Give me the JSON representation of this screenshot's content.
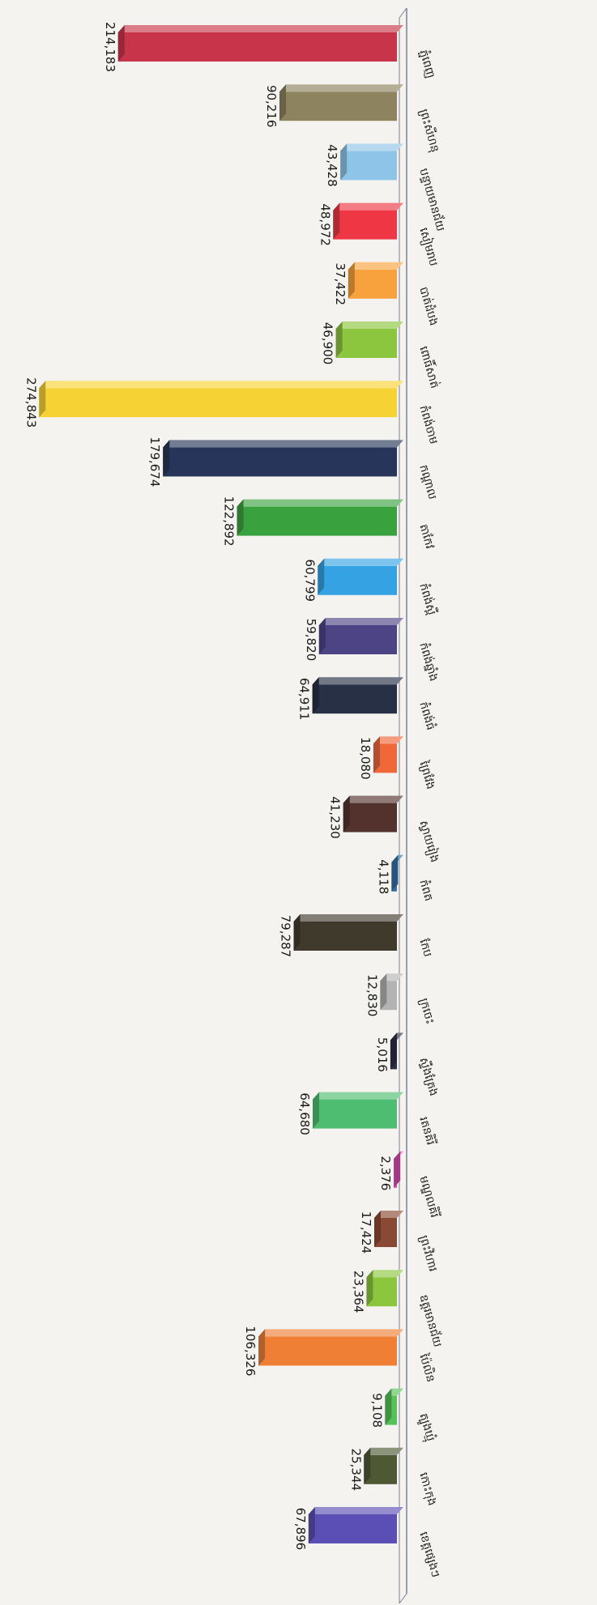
{
  "chart_data": {
    "type": "bar",
    "orientation": "horizontal-3d",
    "categories": [
      "ភ្នំពេញ",
      "ព្រះសីហនុ",
      "បន្ទាយមានជ័យ",
      "សៀមរាប",
      "បាត់ដំបង",
      "ពោធិ៍សាត់",
      "កំពង់ចាម",
      "កណ្តាល",
      "តាកែវ",
      "កំពង់ស្ពឺ",
      "កំពង់ឆ្នាំង",
      "កំពង់ធំ",
      "ព្រៃវែង",
      "ស្វាយរៀង",
      "កំពត",
      "កែប",
      "ក្រចេះ",
      "ស្ទឹងត្រែង",
      "រតនគិរី",
      "មណ្ឌលគិរី",
      "ព្រះវិហារ",
      "ឧត្តរមានជ័យ",
      "ប៉ៃលិន",
      "ត្បូងឃ្មុំ",
      "កោះកុង",
      "ខេត្តផ្សេងៗ"
    ],
    "values": [
      214183,
      90216,
      43428,
      48972,
      37422,
      46900,
      274843,
      179674,
      122892,
      60799,
      59820,
      64911,
      18080,
      41230,
      4118,
      79287,
      12830,
      5016,
      64680,
      2376,
      17424,
      23364,
      106326,
      9108,
      25344,
      67896
    ],
    "value_labels": [
      "214,183",
      "90,216",
      "43,428",
      "48,972",
      "37,422",
      "46,900",
      "274,843",
      "179,674",
      "122,892",
      "60,799",
      "59,820",
      "64,911",
      "18,080",
      "41,230",
      "4,118",
      "79,287",
      "12,830",
      "5,016",
      "64,680",
      "2,376",
      "17,424",
      "23,364",
      "106,326",
      "9,108",
      "25,344",
      "67,896"
    ],
    "colors": [
      "#c8354a",
      "#8d835e",
      "#8ec4e8",
      "#ee3644",
      "#f7a23c",
      "#8cc63f",
      "#f7d234",
      "#263559",
      "#3aa13f",
      "#35a3e3",
      "#4d4486",
      "#283045",
      "#f0673a",
      "#53322d",
      "#3370a6",
      "#403a2c",
      "#b3b3b3",
      "#2e2d47",
      "#4fbd71",
      "#d64db2",
      "#8a4934",
      "#8cc63f",
      "#ef7f35",
      "#55c257",
      "#4e5934",
      "#5b4eb5"
    ],
    "xlim": [
      0,
      280000
    ],
    "grid": false,
    "legend": "none",
    "title": "",
    "xlabel": "",
    "ylabel": ""
  }
}
